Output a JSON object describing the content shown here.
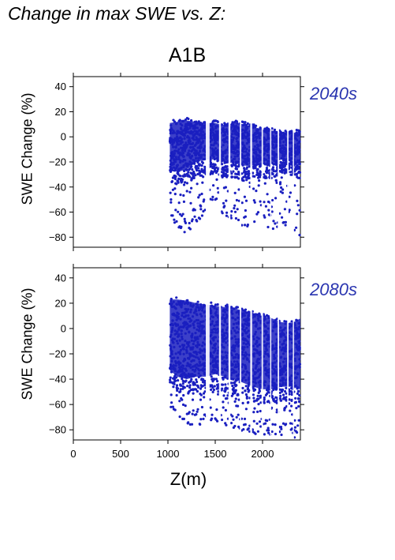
{
  "title": "Change in max SWE vs. Z:",
  "scenario": "A1B",
  "colors": {
    "points": "#1a1fc0",
    "period_text": "#2a35b0"
  },
  "chart_data": [
    {
      "type": "scatter",
      "period": "2040s",
      "ylabel": "SWE Change (%)",
      "xlabel": "",
      "xlim": [
        0,
        2400
      ],
      "ylim": [
        -88,
        48
      ],
      "x_ticks": [
        0,
        500,
        1000,
        1500,
        2000
      ],
      "x_tick_labels": [],
      "y_ticks": [
        40,
        20,
        0,
        -20,
        -40,
        -60,
        -80
      ],
      "y_tick_labels": [
        "40",
        "20",
        "0",
        "−20",
        "−40",
        "−60",
        "−80"
      ],
      "grid": false,
      "series_envelope": {
        "x": [
          1020,
          1100,
          1200,
          1300,
          1400,
          1500,
          1600,
          1700,
          1800,
          1900,
          2000,
          2100,
          2200,
          2300,
          2400
        ],
        "y_max": [
          13,
          14,
          15,
          14,
          13,
          13,
          11,
          13,
          12,
          10,
          8,
          7,
          5,
          5,
          6
        ],
        "y_min": [
          -63,
          -72,
          -78,
          -70,
          -58,
          -60,
          -62,
          -68,
          -73,
          -70,
          -70,
          -78,
          -68,
          -74,
          -82
        ],
        "y_dense_min": [
          -35,
          -40,
          -38,
          -32,
          -30,
          -30,
          -32,
          -33,
          -35,
          -35,
          -33,
          -33,
          -30,
          -30,
          -35
        ]
      }
    },
    {
      "type": "scatter",
      "period": "2080s",
      "ylabel": "SWE Change (%)",
      "xlabel": "Z(m)",
      "xlim": [
        0,
        2400
      ],
      "ylim": [
        -88,
        48
      ],
      "x_ticks": [
        0,
        500,
        1000,
        1500,
        2000
      ],
      "x_tick_labels": [
        "0",
        "500",
        "1000",
        "1500",
        "2000"
      ],
      "y_ticks": [
        40,
        20,
        0,
        -20,
        -40,
        -60,
        -80
      ],
      "y_tick_labels": [
        "40",
        "20",
        "0",
        "−20",
        "−40",
        "−60",
        "−80"
      ],
      "grid": false,
      "series_envelope": {
        "x": [
          1020,
          1100,
          1200,
          1300,
          1400,
          1500,
          1600,
          1700,
          1800,
          1900,
          2000,
          2100,
          2200,
          2300,
          2400
        ],
        "y_max": [
          25,
          25,
          24,
          22,
          21,
          20,
          19,
          18,
          16,
          14,
          12,
          10,
          7,
          6,
          10
        ],
        "y_min": [
          -62,
          -68,
          -75,
          -78,
          -72,
          -73,
          -76,
          -80,
          -82,
          -84,
          -84,
          -85,
          -84,
          -86,
          -86
        ],
        "y_dense_min": [
          -45,
          -50,
          -52,
          -50,
          -50,
          -48,
          -50,
          -52,
          -55,
          -58,
          -60,
          -60,
          -58,
          -58,
          -60
        ]
      }
    }
  ]
}
